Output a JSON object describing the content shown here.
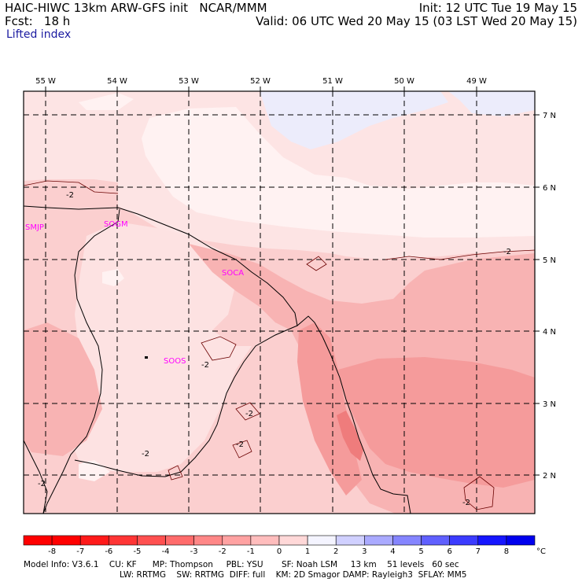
{
  "header": {
    "title_left": "HAIC-HIWC 13km ARW-GFS init   NCAR/MMM",
    "init": "Init: 12 UTC Tue 19 May 15",
    "fcst": "Fcst:   18 h",
    "valid": "Valid: 06 UTC Wed 20 May 15 (03 LST Wed 20 May 15)",
    "field": "Lifted index"
  },
  "longitude_labels": [
    "55 W",
    "54 W",
    "53 W",
    "52 W",
    "51 W",
    "50 W",
    "49 W"
  ],
  "latitude_labels": [
    "7 N",
    "6 N",
    "5 N",
    "4 N",
    "3 N",
    "2 N"
  ],
  "stations": [
    "SMJP",
    "SOGM",
    "SOCA",
    "SOOS"
  ],
  "contour_label": "-2",
  "colorbar": {
    "labels": [
      "-8",
      "-7",
      "-6",
      "-5",
      "-4",
      "-3",
      "-2",
      "-1",
      "0",
      "1",
      "2",
      "3",
      "4",
      "5",
      "6",
      "7",
      "8"
    ],
    "unit": "°C",
    "colors": [
      "#ff0000",
      "#ff1a1a",
      "#ff3535",
      "#ff5050",
      "#ff6b6b",
      "#ff8787",
      "#ffa2a2",
      "#ffbdbd",
      "#ffd8d8",
      "#f4f4ff",
      "#d0d0ff",
      "#aaaaff",
      "#8585ff",
      "#6060ff",
      "#3b3bff",
      "#1515ff",
      "#0000ee"
    ]
  },
  "footer": {
    "line1": "Model Info: V3.6.1    CU: KF      MP: Thompson     PBL: YSU       SF: Noah LSM     13 km    51 levels   60 sec",
    "line2": "LW: RRTMG    SW: RRTMG  DIFF: full    KM: 2D Smagor DAMP: Rayleigh3  SFLAY: MM5"
  },
  "palette": {
    "level_m1": "#fde4e4",
    "level_m2": "#fbcfcf",
    "level_m3": "#f8b3b3",
    "level_m4": "#f59b9b",
    "level_m5": "#ef7c7c",
    "level_0": "#fff4f4",
    "level_p1": "#ececfb",
    "station_color": "#ff00ff"
  }
}
